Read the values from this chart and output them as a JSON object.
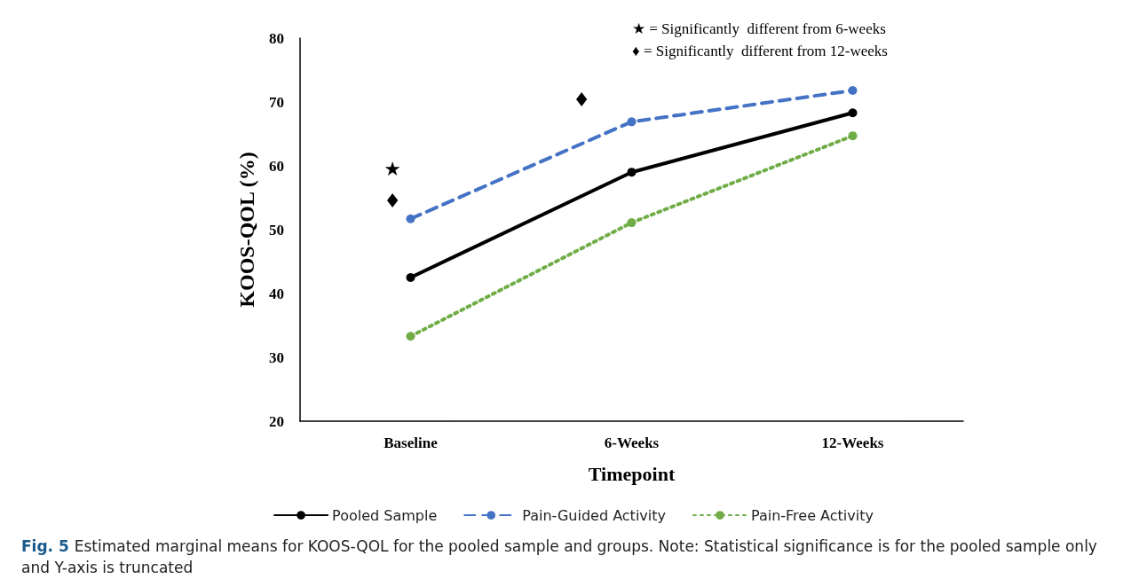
{
  "chart_data": {
    "type": "line",
    "xlabel": "Timepoint",
    "ylabel": "KOOS-QOL (%)",
    "categories": [
      "Baseline",
      "6-Weeks",
      "12-Weeks"
    ],
    "series": [
      {
        "name": "Pooled Sample",
        "color": "#000000",
        "values": [
          42.5,
          59.0,
          68.3
        ],
        "line_style": "solid"
      },
      {
        "name": "Pain-Guided Activity",
        "color": "#4472c4",
        "values": [
          51.7,
          66.9,
          71.8
        ],
        "line_style": "dashed"
      },
      {
        "name": "Pain-Free Activity",
        "color": "#70ad47",
        "values": [
          33.3,
          51.1,
          64.7
        ],
        "line_style": "dotted"
      }
    ],
    "ylim": [
      20,
      80
    ],
    "yticks": [
      20,
      30,
      40,
      50,
      60,
      70,
      80
    ],
    "grid": false,
    "legend": "bottom",
    "marker": "circle",
    "annotations": [
      "★ = Significantly  different from 6-weeks",
      "♦ = Significantly  different from 12-weeks",
      "★",
      "♦",
      "♦",
      "Fig. 5",
      "Estimated marginal means for KOOS-QOL for the pooled sample and groups. Note: Statistical significance is for the pooled sample only and Y-axis is truncated"
    ]
  }
}
